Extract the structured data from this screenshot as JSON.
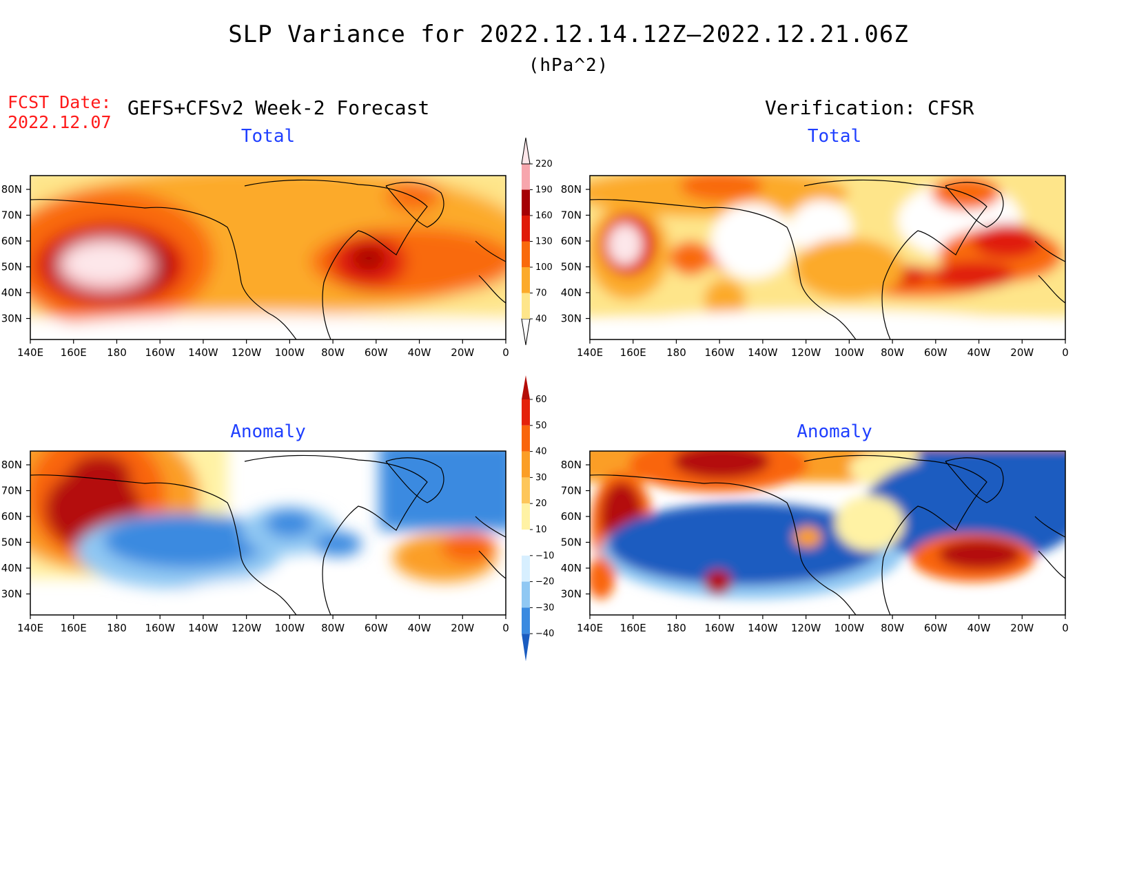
{
  "header": {
    "title": "SLP Variance for 2022.12.14.12Z–2022.12.21.06Z",
    "units": "(hPa^2)",
    "fcst_label": "FCST Date:",
    "fcst_date": "2022.12.07",
    "forecast_heading": "GEFS+CFSv2 Week-2 Forecast",
    "verification_heading": "Verification: CFSR"
  },
  "panels": {
    "fc_total": {
      "title": "Total"
    },
    "ver_total": {
      "title": "Total"
    },
    "fc_anom": {
      "title": "Anomaly"
    },
    "ver_anom": {
      "title": "Anomaly"
    }
  },
  "axes": {
    "lat_labels": [
      "80N",
      "70N",
      "60N",
      "50N",
      "40N",
      "30N"
    ],
    "lon_labels": [
      "140E",
      "160E",
      "180",
      "160W",
      "140W",
      "120W",
      "100W",
      "80W",
      "60W",
      "40W",
      "20W",
      "0"
    ]
  },
  "colorbars": {
    "total": {
      "levels": [
        "40",
        "70",
        "100",
        "130",
        "160",
        "190",
        "220"
      ],
      "colors": [
        "#fee58a",
        "#fcaa2a",
        "#f96a0c",
        "#e01a08",
        "#a50005",
        "#f7a6ad",
        "#fde7ea"
      ]
    },
    "anomaly": {
      "levels": [
        "60",
        "50",
        "40",
        "30",
        "20",
        "10",
        "−10",
        "−20",
        "−30",
        "−40"
      ],
      "colors": [
        "#b40d08",
        "#e4220a",
        "#f9650c",
        "#fb9e26",
        "#fdc65a",
        "#fff2a4",
        "#ffffff",
        "#d7efff",
        "#90c8f3",
        "#3a8ae0",
        "#1a5cc0"
      ]
    }
  }
}
